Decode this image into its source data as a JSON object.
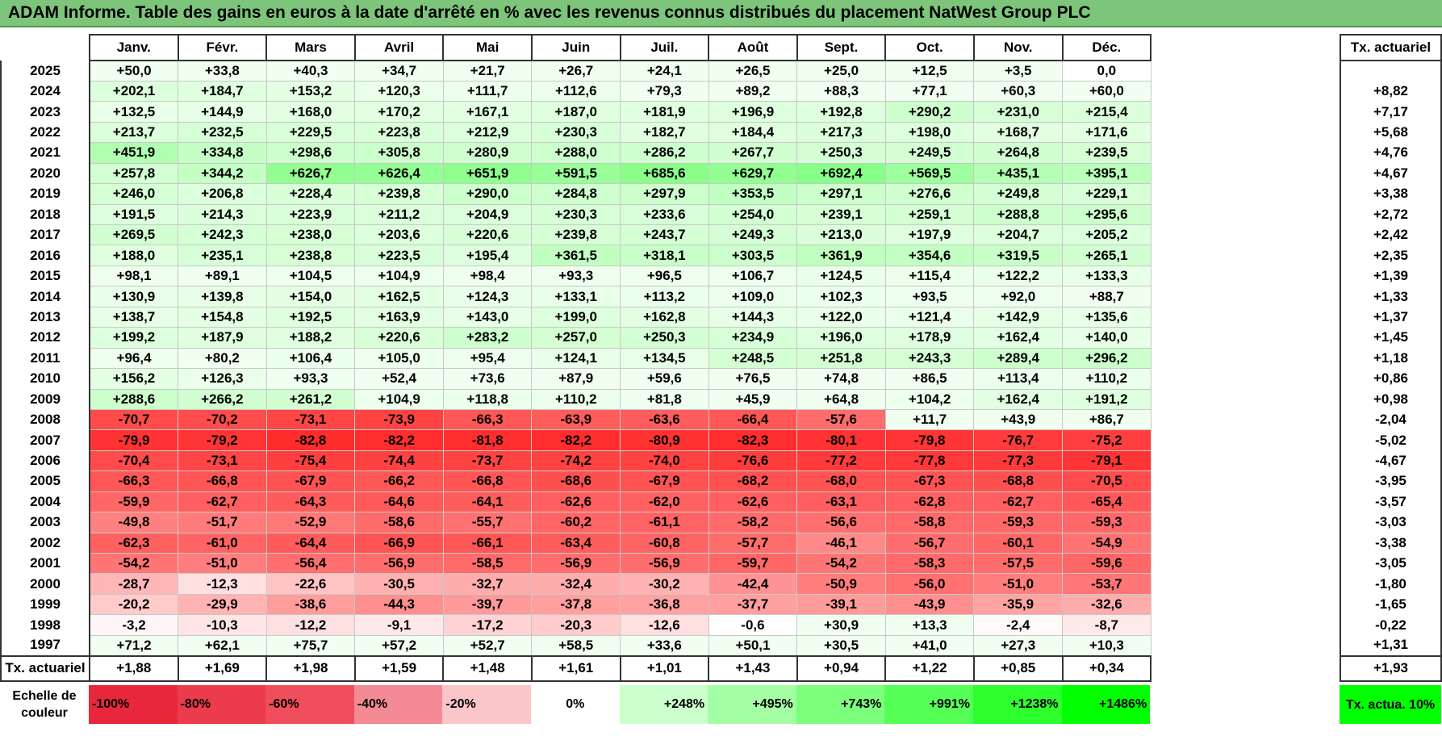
{
  "title": "ADAM Informe. Table des gains en euros à la date d'arrêté en % avec les revenus connus distribués du placement NatWest Group PLC",
  "chart_data": {
    "type": "heatmap",
    "title": "ADAM Informe. Table des gains en euros à la date d'arrêté en % avec les revenus connus distribués du placement NatWest Group PLC",
    "columns": [
      "Janv.",
      "Févr.",
      "Mars",
      "Avril",
      "Mai",
      "Juin",
      "Juil.",
      "Août",
      "Sept.",
      "Oct.",
      "Nov.",
      "Déc."
    ],
    "tx_header": "Tx. actuariel",
    "rows": [
      {
        "year": "2025",
        "values": [
          "+50,0",
          "+33,8",
          "+40,3",
          "+34,7",
          "+21,7",
          "+26,7",
          "+24,1",
          "+26,5",
          "+25,0",
          "+12,5",
          "+3,5",
          "0,0"
        ],
        "tx": ""
      },
      {
        "year": "2024",
        "values": [
          "+202,1",
          "+184,7",
          "+153,2",
          "+120,3",
          "+111,7",
          "+112,6",
          "+79,3",
          "+89,2",
          "+88,3",
          "+77,1",
          "+60,3",
          "+60,0"
        ],
        "tx": "+8,82"
      },
      {
        "year": "2023",
        "values": [
          "+132,5",
          "+144,9",
          "+168,0",
          "+170,2",
          "+167,1",
          "+187,0",
          "+181,9",
          "+196,9",
          "+192,8",
          "+290,2",
          "+231,0",
          "+215,4"
        ],
        "tx": "+7,17"
      },
      {
        "year": "2022",
        "values": [
          "+213,7",
          "+232,5",
          "+229,5",
          "+223,8",
          "+212,9",
          "+230,3",
          "+182,7",
          "+184,4",
          "+217,3",
          "+198,0",
          "+168,7",
          "+171,6"
        ],
        "tx": "+5,68"
      },
      {
        "year": "2021",
        "values": [
          "+451,9",
          "+334,8",
          "+298,6",
          "+305,8",
          "+280,9",
          "+288,0",
          "+286,2",
          "+267,7",
          "+250,3",
          "+249,5",
          "+264,8",
          "+239,5"
        ],
        "tx": "+4,76"
      },
      {
        "year": "2020",
        "values": [
          "+257,8",
          "+344,2",
          "+626,7",
          "+626,4",
          "+651,9",
          "+591,5",
          "+685,6",
          "+629,7",
          "+692,4",
          "+569,5",
          "+435,1",
          "+395,1"
        ],
        "tx": "+4,67"
      },
      {
        "year": "2019",
        "values": [
          "+246,0",
          "+206,8",
          "+228,4",
          "+239,8",
          "+290,0",
          "+284,8",
          "+297,9",
          "+353,5",
          "+297,1",
          "+276,6",
          "+249,8",
          "+229,1"
        ],
        "tx": "+3,38"
      },
      {
        "year": "2018",
        "values": [
          "+191,5",
          "+214,3",
          "+223,9",
          "+211,2",
          "+204,9",
          "+230,3",
          "+233,6",
          "+254,0",
          "+239,1",
          "+259,1",
          "+288,8",
          "+295,6"
        ],
        "tx": "+2,72"
      },
      {
        "year": "2017",
        "values": [
          "+269,5",
          "+242,3",
          "+238,0",
          "+203,6",
          "+220,6",
          "+239,8",
          "+243,7",
          "+249,3",
          "+213,0",
          "+197,9",
          "+204,7",
          "+205,2"
        ],
        "tx": "+2,42"
      },
      {
        "year": "2016",
        "values": [
          "+188,0",
          "+235,1",
          "+238,8",
          "+223,5",
          "+195,4",
          "+361,5",
          "+318,1",
          "+303,5",
          "+361,9",
          "+354,6",
          "+319,5",
          "+265,1"
        ],
        "tx": "+2,35"
      },
      {
        "year": "2015",
        "values": [
          "+98,1",
          "+89,1",
          "+104,5",
          "+104,9",
          "+98,4",
          "+93,3",
          "+96,5",
          "+106,7",
          "+124,5",
          "+115,4",
          "+122,2",
          "+133,3"
        ],
        "tx": "+1,39"
      },
      {
        "year": "2014",
        "values": [
          "+130,9",
          "+139,8",
          "+154,0",
          "+162,5",
          "+124,3",
          "+133,1",
          "+113,2",
          "+109,0",
          "+102,3",
          "+93,5",
          "+92,0",
          "+88,7"
        ],
        "tx": "+1,33"
      },
      {
        "year": "2013",
        "values": [
          "+138,7",
          "+154,8",
          "+192,5",
          "+163,9",
          "+143,0",
          "+199,0",
          "+162,8",
          "+144,3",
          "+122,0",
          "+121,4",
          "+142,9",
          "+135,6"
        ],
        "tx": "+1,37"
      },
      {
        "year": "2012",
        "values": [
          "+199,2",
          "+187,9",
          "+188,2",
          "+220,6",
          "+283,2",
          "+257,0",
          "+250,3",
          "+234,9",
          "+196,0",
          "+178,9",
          "+162,4",
          "+140,0"
        ],
        "tx": "+1,45"
      },
      {
        "year": "2011",
        "values": [
          "+96,4",
          "+80,2",
          "+106,4",
          "+105,0",
          "+95,4",
          "+124,1",
          "+134,5",
          "+248,5",
          "+251,8",
          "+243,3",
          "+289,4",
          "+296,2"
        ],
        "tx": "+1,18"
      },
      {
        "year": "2010",
        "values": [
          "+156,2",
          "+126,3",
          "+93,3",
          "+52,4",
          "+73,6",
          "+87,9",
          "+59,6",
          "+76,5",
          "+74,8",
          "+86,5",
          "+113,4",
          "+110,2"
        ],
        "tx": "+0,86"
      },
      {
        "year": "2009",
        "values": [
          "+288,6",
          "+266,2",
          "+261,2",
          "+104,9",
          "+118,8",
          "+110,2",
          "+81,8",
          "+45,9",
          "+64,8",
          "+104,2",
          "+162,4",
          "+191,2"
        ],
        "tx": "+0,98"
      },
      {
        "year": "2008",
        "values": [
          "-70,7",
          "-70,2",
          "-73,1",
          "-73,9",
          "-66,3",
          "-63,9",
          "-63,6",
          "-66,4",
          "-57,6",
          "+11,7",
          "+43,9",
          "+86,7"
        ],
        "tx": "-2,04"
      },
      {
        "year": "2007",
        "values": [
          "-79,9",
          "-79,2",
          "-82,8",
          "-82,2",
          "-81,8",
          "-82,2",
          "-80,9",
          "-82,3",
          "-80,1",
          "-79,8",
          "-76,7",
          "-75,2"
        ],
        "tx": "-5,02"
      },
      {
        "year": "2006",
        "values": [
          "-70,4",
          "-73,1",
          "-75,4",
          "-74,4",
          "-73,7",
          "-74,2",
          "-74,0",
          "-76,6",
          "-77,2",
          "-77,8",
          "-77,3",
          "-79,1"
        ],
        "tx": "-4,67"
      },
      {
        "year": "2005",
        "values": [
          "-66,3",
          "-66,8",
          "-67,9",
          "-66,2",
          "-66,8",
          "-68,6",
          "-67,9",
          "-68,2",
          "-68,0",
          "-67,3",
          "-68,8",
          "-70,5"
        ],
        "tx": "-3,95"
      },
      {
        "year": "2004",
        "values": [
          "-59,9",
          "-62,7",
          "-64,3",
          "-64,6",
          "-64,1",
          "-62,6",
          "-62,0",
          "-62,6",
          "-63,1",
          "-62,8",
          "-62,7",
          "-65,4"
        ],
        "tx": "-3,57"
      },
      {
        "year": "2003",
        "values": [
          "-49,8",
          "-51,7",
          "-52,9",
          "-58,6",
          "-55,7",
          "-60,2",
          "-61,1",
          "-58,2",
          "-56,6",
          "-58,8",
          "-59,3",
          "-59,3"
        ],
        "tx": "-3,03"
      },
      {
        "year": "2002",
        "values": [
          "-62,3",
          "-61,0",
          "-64,4",
          "-66,9",
          "-66,1",
          "-63,4",
          "-60,8",
          "-57,7",
          "-46,1",
          "-56,7",
          "-60,1",
          "-54,9"
        ],
        "tx": "-3,38"
      },
      {
        "year": "2001",
        "values": [
          "-54,2",
          "-51,0",
          "-56,4",
          "-56,9",
          "-58,5",
          "-56,9",
          "-56,9",
          "-59,7",
          "-54,2",
          "-58,3",
          "-57,5",
          "-59,6"
        ],
        "tx": "-3,05"
      },
      {
        "year": "2000",
        "values": [
          "-28,7",
          "-12,3",
          "-22,6",
          "-30,5",
          "-32,7",
          "-32,4",
          "-30,2",
          "-42,4",
          "-50,9",
          "-56,0",
          "-51,0",
          "-53,7"
        ],
        "tx": "-1,80"
      },
      {
        "year": "1999",
        "values": [
          "-20,2",
          "-29,9",
          "-38,6",
          "-44,3",
          "-39,7",
          "-37,8",
          "-36,8",
          "-37,7",
          "-39,1",
          "-43,9",
          "-35,9",
          "-32,6"
        ],
        "tx": "-1,65"
      },
      {
        "year": "1998",
        "values": [
          "-3,2",
          "-10,3",
          "-12,2",
          "-9,1",
          "-17,2",
          "-20,3",
          "-12,6",
          "-0,6",
          "+30,9",
          "+13,3",
          "-2,4",
          "-8,7"
        ],
        "tx": "-0,22"
      },
      {
        "year": "1997",
        "values": [
          "+71,2",
          "+62,1",
          "+75,7",
          "+57,2",
          "+52,7",
          "+58,5",
          "+33,6",
          "+50,1",
          "+30,5",
          "+41,0",
          "+27,3",
          "+10,3"
        ],
        "tx": "+1,31"
      }
    ],
    "footer": {
      "label": "Tx. actuariel",
      "values": [
        "+1,88",
        "+1,69",
        "+1,98",
        "+1,59",
        "+1,48",
        "+1,61",
        "+1,01",
        "+1,43",
        "+0,94",
        "+1,22",
        "+0,85",
        "+0,34"
      ],
      "tx": "+1,93"
    },
    "color_scale": {
      "label": "Echelle de couleur",
      "steps": [
        {
          "label": "-100%",
          "value": -100,
          "color": "#e8273c"
        },
        {
          "label": "-80%",
          "value": -80,
          "color": "#ec3b4c"
        },
        {
          "label": "-60%",
          "value": -60,
          "color": "#f04e5c"
        },
        {
          "label": "-40%",
          "value": -40,
          "color": "#f48a93"
        },
        {
          "label": "-20%",
          "value": -20,
          "color": "#fbc5ca"
        },
        {
          "label": "0%",
          "value": 0,
          "color": "#ffffff"
        },
        {
          "label": "+248%",
          "value": 248,
          "color": "#ccffcc"
        },
        {
          "label": "+495%",
          "value": 495,
          "color": "#a4ffa4"
        },
        {
          "label": "+743%",
          "value": 743,
          "color": "#7cff7c"
        },
        {
          "label": "+991%",
          "value": 991,
          "color": "#55ff55"
        },
        {
          "label": "+1238%",
          "value": 1238,
          "color": "#2dff2d"
        },
        {
          "label": "+1486%",
          "value": 1486,
          "color": "#00ff00"
        }
      ],
      "tx_label": "Tx. actua. 10%",
      "tx_color": "#00ff00"
    }
  }
}
